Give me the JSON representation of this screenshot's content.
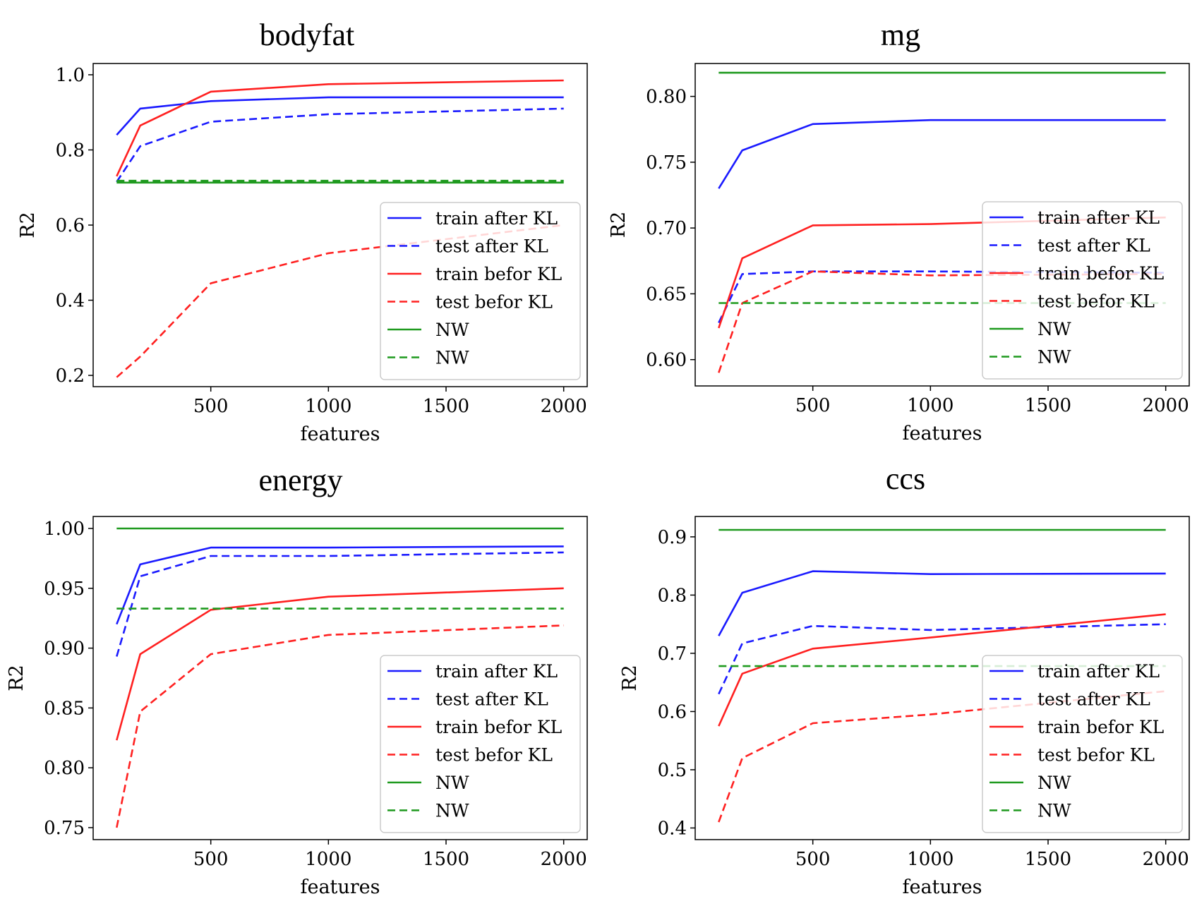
{
  "figure": {
    "legend_location": "lower-right",
    "colors": {
      "blue": "#1a1aff",
      "red": "#ff2020",
      "green": "#1f9a1f"
    }
  },
  "chart_data": [
    {
      "type": "line",
      "title": "bodyfat",
      "xlabel": "features",
      "ylabel": "R2",
      "x": [
        100,
        200,
        500,
        1000,
        2000
      ],
      "xlim": [
        0,
        2100
      ],
      "ylim": [
        0.17,
        1.03
      ],
      "xticks": [
        500,
        1000,
        1500,
        2000
      ],
      "xtick_labels": [
        "500",
        "1000",
        "1500",
        "2000"
      ],
      "yticks": [
        0.2,
        0.4,
        0.6,
        0.8,
        1.0
      ],
      "ytick_labels": [
        "0.2",
        "0.4",
        "0.6",
        "0.8",
        "1.0"
      ],
      "legend": "lower-right",
      "series": [
        {
          "name": "train after KL",
          "color": "#1a1aff",
          "dash": "solid",
          "values": [
            0.84,
            0.91,
            0.93,
            0.94,
            0.94
          ]
        },
        {
          "name": "test after KL",
          "color": "#1a1aff",
          "dash": "dashed",
          "values": [
            0.715,
            0.81,
            0.875,
            0.895,
            0.91
          ]
        },
        {
          "name": "train befor KL",
          "color": "#ff2020",
          "dash": "solid",
          "values": [
            0.73,
            0.865,
            0.955,
            0.975,
            0.985
          ]
        },
        {
          "name": "test befor KL",
          "color": "#ff2020",
          "dash": "dashed",
          "values": [
            0.195,
            0.25,
            0.445,
            0.525,
            0.6
          ]
        },
        {
          "name": "NW",
          "color": "#1f9a1f",
          "dash": "solid",
          "values": [
            0.713,
            0.713,
            0.713,
            0.713,
            0.713
          ]
        },
        {
          "name": "NW",
          "color": "#1f9a1f",
          "dash": "dashed",
          "values": [
            0.718,
            0.718,
            0.718,
            0.718,
            0.718
          ]
        }
      ]
    },
    {
      "type": "line",
      "title": "mg",
      "xlabel": "features",
      "ylabel": "R2",
      "x": [
        100,
        200,
        500,
        1000,
        2000
      ],
      "xlim": [
        0,
        2100
      ],
      "ylim": [
        0.58,
        0.825
      ],
      "xticks": [
        500,
        1000,
        1500,
        2000
      ],
      "xtick_labels": [
        "500",
        "1000",
        "1500",
        "2000"
      ],
      "yticks": [
        0.6,
        0.65,
        0.7,
        0.75,
        0.8
      ],
      "ytick_labels": [
        "0.60",
        "0.65",
        "0.70",
        "0.75",
        "0.80"
      ],
      "legend": "lower-right",
      "series": [
        {
          "name": "train after KL",
          "color": "#1a1aff",
          "dash": "solid",
          "values": [
            0.73,
            0.759,
            0.779,
            0.782,
            0.782
          ]
        },
        {
          "name": "test after KL",
          "color": "#1a1aff",
          "dash": "dashed",
          "values": [
            0.628,
            0.665,
            0.667,
            0.667,
            0.666
          ]
        },
        {
          "name": "train befor KL",
          "color": "#ff2020",
          "dash": "solid",
          "values": [
            0.624,
            0.677,
            0.702,
            0.703,
            0.708
          ]
        },
        {
          "name": "test befor KL",
          "color": "#ff2020",
          "dash": "dashed",
          "values": [
            0.59,
            0.643,
            0.667,
            0.664,
            0.665
          ]
        },
        {
          "name": "NW",
          "color": "#1f9a1f",
          "dash": "solid",
          "values": [
            0.818,
            0.818,
            0.818,
            0.818,
            0.818
          ]
        },
        {
          "name": "NW",
          "color": "#1f9a1f",
          "dash": "dashed",
          "values": [
            0.643,
            0.643,
            0.643,
            0.643,
            0.643
          ]
        }
      ]
    },
    {
      "type": "line",
      "title": "energy",
      "xlabel": "features",
      "ylabel": "R2",
      "x": [
        100,
        200,
        500,
        1000,
        2000
      ],
      "xlim": [
        0,
        2100
      ],
      "ylim": [
        0.74,
        1.01
      ],
      "xticks": [
        500,
        1000,
        1500,
        2000
      ],
      "xtick_labels": [
        "500",
        "1000",
        "1500",
        "2000"
      ],
      "yticks": [
        0.75,
        0.8,
        0.85,
        0.9,
        0.95,
        1.0
      ],
      "ytick_labels": [
        "0.75",
        "0.80",
        "0.85",
        "0.90",
        "0.95",
        "1.00"
      ],
      "legend": "lower-right",
      "series": [
        {
          "name": "train after KL",
          "color": "#1a1aff",
          "dash": "solid",
          "values": [
            0.92,
            0.97,
            0.984,
            0.984,
            0.985
          ]
        },
        {
          "name": "test after KL",
          "color": "#1a1aff",
          "dash": "dashed",
          "values": [
            0.893,
            0.96,
            0.977,
            0.977,
            0.98
          ]
        },
        {
          "name": "train befor KL",
          "color": "#ff2020",
          "dash": "solid",
          "values": [
            0.823,
            0.895,
            0.932,
            0.943,
            0.95
          ]
        },
        {
          "name": "test befor KL",
          "color": "#ff2020",
          "dash": "dashed",
          "values": [
            0.75,
            0.847,
            0.895,
            0.911,
            0.919
          ]
        },
        {
          "name": "NW",
          "color": "#1f9a1f",
          "dash": "solid",
          "values": [
            1.0,
            1.0,
            1.0,
            1.0,
            1.0
          ]
        },
        {
          "name": "NW",
          "color": "#1f9a1f",
          "dash": "dashed",
          "values": [
            0.933,
            0.933,
            0.933,
            0.933,
            0.933
          ]
        }
      ]
    },
    {
      "type": "line",
      "title": "ccs",
      "xlabel": "features",
      "ylabel": "R2",
      "x": [
        100,
        200,
        500,
        1000,
        2000
      ],
      "xlim": [
        0,
        2100
      ],
      "ylim": [
        0.38,
        0.935
      ],
      "xticks": [
        500,
        1000,
        1500,
        2000
      ],
      "xtick_labels": [
        "500",
        "1000",
        "1500",
        "2000"
      ],
      "yticks": [
        0.4,
        0.5,
        0.6,
        0.7,
        0.8,
        0.9
      ],
      "ytick_labels": [
        "0.4",
        "0.5",
        "0.6",
        "0.7",
        "0.8",
        "0.9"
      ],
      "legend": "lower-right",
      "series": [
        {
          "name": "train after KL",
          "color": "#1a1aff",
          "dash": "solid",
          "values": [
            0.73,
            0.804,
            0.841,
            0.836,
            0.837
          ]
        },
        {
          "name": "test after KL",
          "color": "#1a1aff",
          "dash": "dashed",
          "values": [
            0.63,
            0.717,
            0.747,
            0.74,
            0.75
          ]
        },
        {
          "name": "train befor KL",
          "color": "#ff2020",
          "dash": "solid",
          "values": [
            0.575,
            0.665,
            0.708,
            0.727,
            0.767
          ]
        },
        {
          "name": "test befor KL",
          "color": "#ff2020",
          "dash": "dashed",
          "values": [
            0.41,
            0.52,
            0.58,
            0.595,
            0.635
          ]
        },
        {
          "name": "NW",
          "color": "#1f9a1f",
          "dash": "solid",
          "values": [
            0.912,
            0.912,
            0.912,
            0.912,
            0.912
          ]
        },
        {
          "name": "NW",
          "color": "#1f9a1f",
          "dash": "dashed",
          "values": [
            0.678,
            0.678,
            0.678,
            0.678,
            0.678
          ]
        }
      ]
    }
  ]
}
